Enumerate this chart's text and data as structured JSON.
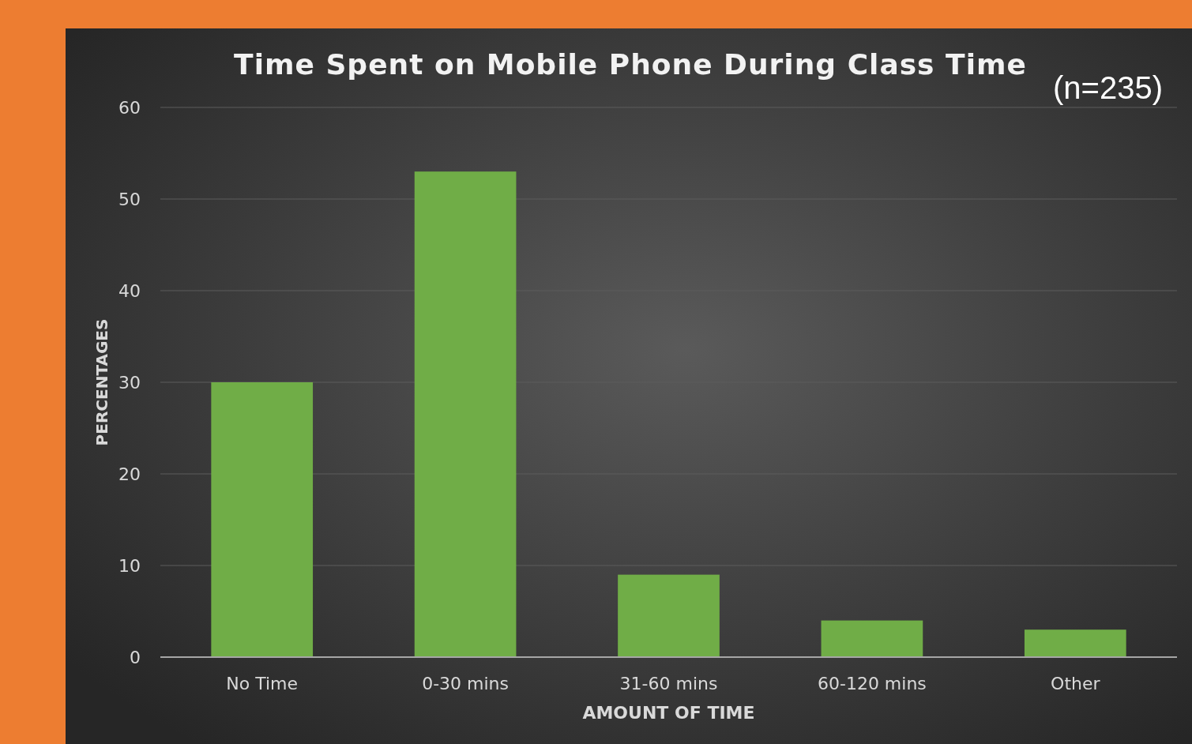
{
  "chart_data": {
    "type": "bar",
    "title": "Time Spent on Mobile Phone During Class Time",
    "annotations": [
      "(n=235)"
    ],
    "xlabel": "AMOUNT OF TIME",
    "ylabel": "PERCENTAGES",
    "categories": [
      "No Time",
      "0-30 mins",
      "31-60 mins",
      "60-120 mins",
      "Other"
    ],
    "values": [
      30,
      53,
      9,
      4,
      3
    ],
    "color": "#70ad47",
    "ylim": [
      0,
      60
    ],
    "yticks": [
      0,
      10,
      20,
      30,
      40,
      50,
      60
    ],
    "grid": "y"
  }
}
